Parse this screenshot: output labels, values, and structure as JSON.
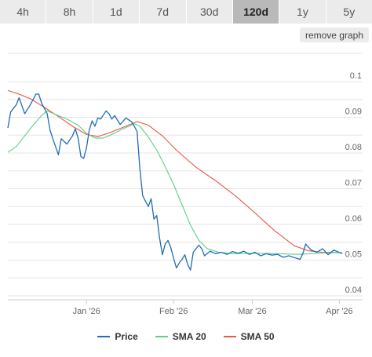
{
  "tabs": [
    {
      "label": "4h",
      "active": false
    },
    {
      "label": "8h",
      "active": false
    },
    {
      "label": "1d",
      "active": false
    },
    {
      "label": "7d",
      "active": false
    },
    {
      "label": "30d",
      "active": false
    },
    {
      "label": "120d",
      "active": true
    },
    {
      "label": "1y",
      "active": false
    },
    {
      "label": "5y",
      "active": false
    }
  ],
  "remove_graph_label": "remove graph",
  "colors": {
    "price": "#1f6db5",
    "sma20": "#5ccf85",
    "sma50": "#e8584a",
    "grid": "#e6e6e6",
    "axis_text": "#666666"
  },
  "chart_data": {
    "type": "line",
    "title": "",
    "xlabel": "",
    "ylabel": "",
    "ylim": [
      0.04,
      0.1
    ],
    "yticks": [
      0.04,
      0.05,
      0.06,
      0.07,
      0.08,
      0.09,
      0.1
    ],
    "ytick_labels": [
      "0.04",
      "0.05",
      "0.06",
      "0.07",
      "0.08",
      "0.09",
      "0.1"
    ],
    "xlim": [
      "2025-12-04",
      "2026-04-02"
    ],
    "xticks": [
      {
        "date": "2026-01-01",
        "label": "Jan '26"
      },
      {
        "date": "2026-02-01",
        "label": "Feb '26"
      },
      {
        "date": "2026-03-01",
        "label": "Mar '26"
      },
      {
        "date": "2026-04-01",
        "label": "Apr '26"
      }
    ],
    "grid": true,
    "legend_position": "bottom",
    "series": [
      {
        "name": "Price",
        "color_key": "price",
        "points": [
          [
            "2025-12-04",
            0.087
          ],
          [
            "2025-12-05",
            0.0915
          ],
          [
            "2025-12-07",
            0.0935
          ],
          [
            "2025-12-08",
            0.0955
          ],
          [
            "2025-12-10",
            0.091
          ],
          [
            "2025-12-12",
            0.0935
          ],
          [
            "2025-12-14",
            0.0965
          ],
          [
            "2025-12-15",
            0.0965
          ],
          [
            "2025-12-16",
            0.094
          ],
          [
            "2025-12-18",
            0.091
          ],
          [
            "2025-12-19",
            0.0865
          ],
          [
            "2025-12-20",
            0.084
          ],
          [
            "2025-12-22",
            0.0795
          ],
          [
            "2025-12-23",
            0.084
          ],
          [
            "2025-12-25",
            0.0825
          ],
          [
            "2025-12-27",
            0.0848
          ],
          [
            "2025-12-28",
            0.0868
          ],
          [
            "2025-12-29",
            0.0842
          ],
          [
            "2025-12-30",
            0.079
          ],
          [
            "2025-12-31",
            0.0785
          ],
          [
            "2026-01-01",
            0.0815
          ],
          [
            "2026-01-02",
            0.0865
          ],
          [
            "2026-01-03",
            0.089
          ],
          [
            "2026-01-04",
            0.0875
          ],
          [
            "2026-01-05",
            0.0898
          ],
          [
            "2026-01-06",
            0.0895
          ],
          [
            "2026-01-08",
            0.0918
          ],
          [
            "2026-01-09",
            0.091
          ],
          [
            "2026-01-10",
            0.0895
          ],
          [
            "2026-01-11",
            0.0905
          ],
          [
            "2026-01-13",
            0.088
          ],
          [
            "2026-01-15",
            0.0898
          ],
          [
            "2026-01-17",
            0.0888
          ],
          [
            "2026-01-18",
            0.0875
          ],
          [
            "2026-01-19",
            0.086
          ],
          [
            "2026-01-20",
            0.0755
          ],
          [
            "2026-01-21",
            0.068
          ],
          [
            "2026-01-22",
            0.0665
          ],
          [
            "2026-01-23",
            0.065
          ],
          [
            "2026-01-24",
            0.0672
          ],
          [
            "2026-01-25",
            0.0615
          ],
          [
            "2026-01-26",
            0.0625
          ],
          [
            "2026-01-27",
            0.0562
          ],
          [
            "2026-01-28",
            0.0515
          ],
          [
            "2026-01-29",
            0.0545
          ],
          [
            "2026-01-30",
            0.0555
          ],
          [
            "2026-01-31",
            0.0535
          ],
          [
            "2026-02-01",
            0.0505
          ],
          [
            "2026-02-02",
            0.0478
          ],
          [
            "2026-02-03",
            0.0492
          ],
          [
            "2026-02-04",
            0.0502
          ],
          [
            "2026-02-05",
            0.0515
          ],
          [
            "2026-02-06",
            0.0488
          ],
          [
            "2026-02-07",
            0.0472
          ],
          [
            "2026-02-08",
            0.0522
          ],
          [
            "2026-02-10",
            0.0542
          ],
          [
            "2026-02-11",
            0.0532
          ],
          [
            "2026-02-12",
            0.0512
          ],
          [
            "2026-02-14",
            0.0525
          ],
          [
            "2026-02-16",
            0.0518
          ],
          [
            "2026-02-18",
            0.0522
          ],
          [
            "2026-02-20",
            0.0516
          ],
          [
            "2026-02-22",
            0.0524
          ],
          [
            "2026-02-24",
            0.0519
          ],
          [
            "2026-02-26",
            0.0525
          ],
          [
            "2026-02-28",
            0.0516
          ],
          [
            "2026-03-02",
            0.0522
          ],
          [
            "2026-03-04",
            0.0512
          ],
          [
            "2026-03-06",
            0.0518
          ],
          [
            "2026-03-08",
            0.0514
          ],
          [
            "2026-03-10",
            0.0516
          ],
          [
            "2026-03-12",
            0.0508
          ],
          [
            "2026-03-14",
            0.0512
          ],
          [
            "2026-03-16",
            0.0507
          ],
          [
            "2026-03-18",
            0.0502
          ],
          [
            "2026-03-19",
            0.0518
          ],
          [
            "2026-03-20",
            0.0545
          ],
          [
            "2026-03-22",
            0.0528
          ],
          [
            "2026-03-24",
            0.0522
          ],
          [
            "2026-03-26",
            0.0532
          ],
          [
            "2026-03-28",
            0.0515
          ],
          [
            "2026-03-30",
            0.0528
          ],
          [
            "2026-04-02",
            0.0518
          ]
        ]
      },
      {
        "name": "SMA 20",
        "color_key": "sma20",
        "points": [
          [
            "2025-12-04",
            0.0802
          ],
          [
            "2025-12-07",
            0.0818
          ],
          [
            "2025-12-10",
            0.0848
          ],
          [
            "2025-12-13",
            0.0878
          ],
          [
            "2025-12-16",
            0.0905
          ],
          [
            "2025-12-18",
            0.0918
          ],
          [
            "2025-12-21",
            0.0908
          ],
          [
            "2025-12-25",
            0.0895
          ],
          [
            "2025-12-29",
            0.0878
          ],
          [
            "2026-01-01",
            0.0855
          ],
          [
            "2026-01-04",
            0.0842
          ],
          [
            "2026-01-07",
            0.0842
          ],
          [
            "2026-01-10",
            0.0852
          ],
          [
            "2026-01-14",
            0.0868
          ],
          [
            "2026-01-18",
            0.0882
          ],
          [
            "2026-01-20",
            0.0875
          ],
          [
            "2026-01-23",
            0.0845
          ],
          [
            "2026-01-26",
            0.0808
          ],
          [
            "2026-01-29",
            0.0762
          ],
          [
            "2026-02-01",
            0.0712
          ],
          [
            "2026-02-04",
            0.0655
          ],
          [
            "2026-02-07",
            0.0598
          ],
          [
            "2026-02-10",
            0.0555
          ],
          [
            "2026-02-13",
            0.0532
          ],
          [
            "2026-02-17",
            0.0522
          ],
          [
            "2026-02-22",
            0.0518
          ],
          [
            "2026-03-01",
            0.0519
          ],
          [
            "2026-03-10",
            0.0518
          ],
          [
            "2026-03-18",
            0.0516
          ],
          [
            "2026-03-26",
            0.052
          ],
          [
            "2026-04-02",
            0.0521
          ]
        ]
      },
      {
        "name": "SMA 50",
        "color_key": "sma50",
        "points": [
          [
            "2025-12-04",
            0.0975
          ],
          [
            "2025-12-08",
            0.0965
          ],
          [
            "2025-12-12",
            0.0952
          ],
          [
            "2025-12-17",
            0.0928
          ],
          [
            "2025-12-22",
            0.0902
          ],
          [
            "2025-12-27",
            0.0875
          ],
          [
            "2026-01-01",
            0.0852
          ],
          [
            "2026-01-05",
            0.0846
          ],
          [
            "2026-01-09",
            0.0856
          ],
          [
            "2026-01-14",
            0.0872
          ],
          [
            "2026-01-19",
            0.0888
          ],
          [
            "2026-01-23",
            0.0878
          ],
          [
            "2026-01-28",
            0.0848
          ],
          [
            "2026-02-02",
            0.0808
          ],
          [
            "2026-02-09",
            0.076
          ],
          [
            "2026-02-16",
            0.0722
          ],
          [
            "2026-02-23",
            0.068
          ],
          [
            "2026-03-02",
            0.0632
          ],
          [
            "2026-03-09",
            0.0582
          ],
          [
            "2026-03-16",
            0.054
          ],
          [
            "2026-03-21",
            0.0526
          ],
          [
            "2026-03-26",
            0.0522
          ],
          [
            "2026-04-02",
            0.0521
          ]
        ]
      }
    ]
  }
}
